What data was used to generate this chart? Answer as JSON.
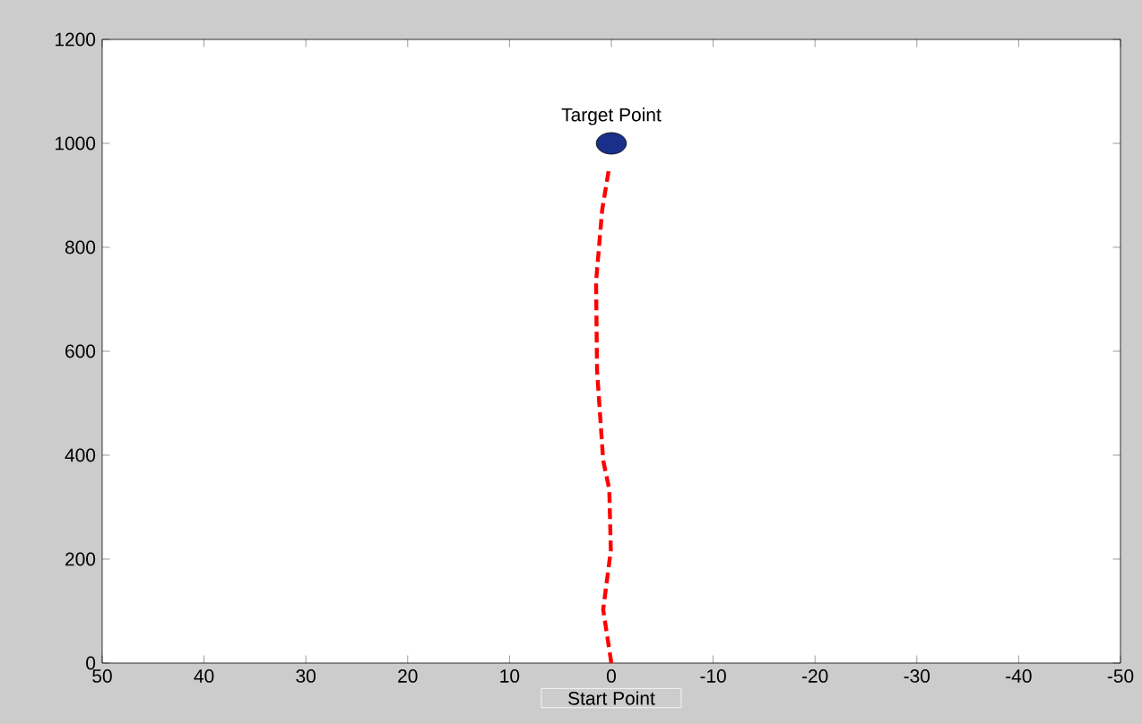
{
  "chart_data": {
    "type": "line",
    "xlim": [
      50,
      -50
    ],
    "xticks": [
      50,
      40,
      30,
      20,
      10,
      0,
      {
        "value": -10,
        "label": "-10"
      },
      {
        "value": -20,
        "label": "-20"
      },
      {
        "value": -30,
        "label": "-30"
      },
      {
        "value": -40,
        "label": "-40"
      },
      {
        "value": -50,
        "label": "-50"
      }
    ],
    "ylim": [
      0,
      1200
    ],
    "yticks": [
      0,
      200,
      400,
      600,
      800,
      1000,
      1200
    ],
    "series": [
      {
        "color": "#ff0000",
        "line_style": "dashed",
        "marker": "none",
        "x": [
          0,
          0.8,
          0.05,
          0.2,
          0.8,
          1.4,
          1.5,
          0.9,
          0.2
        ],
        "values": [
          0,
          103,
          217,
          334,
          390,
          562,
          734,
          872,
          955
        ]
      },
      {
        "type": "scatter",
        "color": "#1a2f8a",
        "marker": "circle",
        "x": [
          0
        ],
        "values": [
          1000
        ]
      }
    ],
    "annotations": [
      {
        "text": "Target Point",
        "x": 0,
        "y": 1000
      },
      {
        "text": "Start Point",
        "x": 0,
        "y": 0
      }
    ],
    "grid": false
  }
}
